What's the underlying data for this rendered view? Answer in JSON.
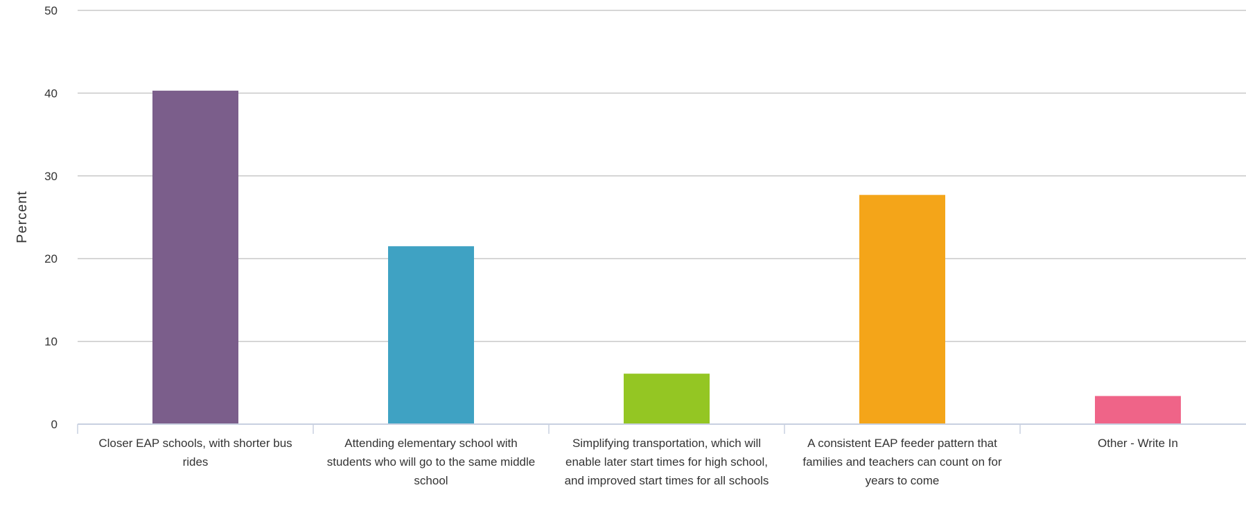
{
  "chart_data": {
    "type": "bar",
    "title": "",
    "xlabel": "",
    "ylabel": "Percent",
    "ylim": [
      0,
      50
    ],
    "yticks": [
      0,
      10,
      20,
      30,
      40,
      50
    ],
    "grid": true,
    "categories": [
      "Closer EAP schools, with shorter bus rides",
      "Attending elementary school with students who will go to the same middle school",
      "Simplifying transportation, which will enable later start times for high school, and improved start times for all schools",
      "A consistent EAP feeder pattern that families and teachers can count on for years to come",
      "Other - Write In"
    ],
    "values": [
      40.3,
      21.5,
      6.1,
      27.7,
      3.4
    ],
    "colors": [
      "#7b5e8b",
      "#3fa2c3",
      "#94c623",
      "#f4a519",
      "#ef6488"
    ]
  }
}
